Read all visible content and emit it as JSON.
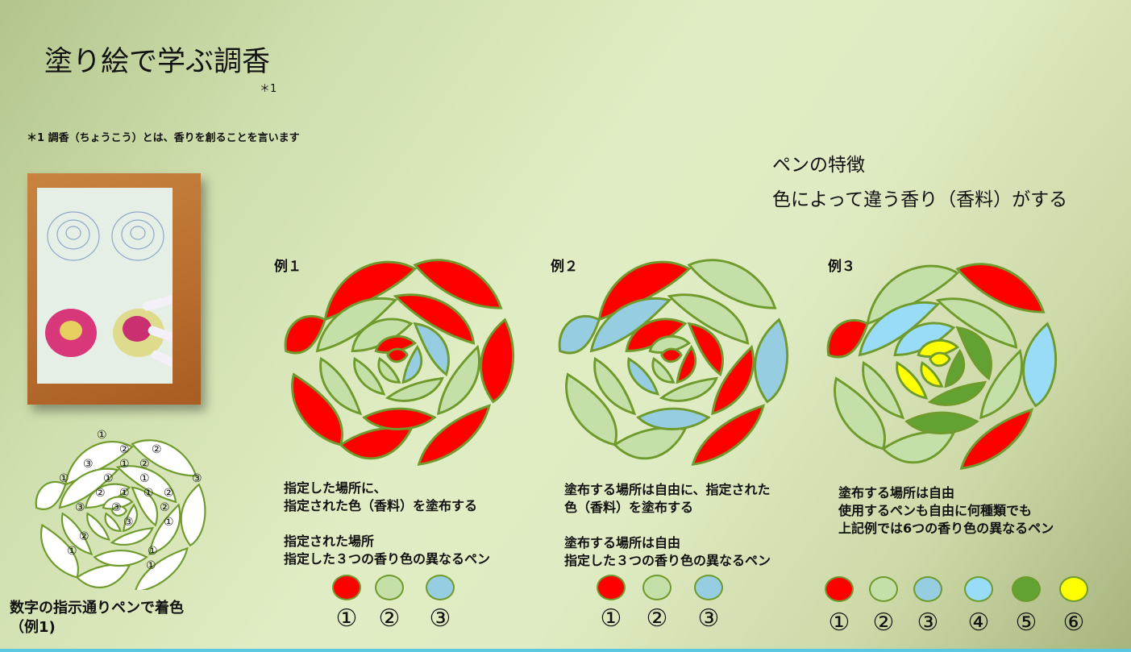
{
  "title": "塗り絵で学ぶ調香",
  "title_note": "＊1",
  "footnote": "＊1 調香（ちょうこう）とは、香りを創ることを言います",
  "features": {
    "heading": "ペンの特徴",
    "text": "色によって違う香り（香料）がする"
  },
  "caption": "数字の指示通りペンで着色\n（例1)",
  "numbered_rose_labels": [
    "①",
    "②",
    "②",
    "③",
    "①",
    "②",
    "①",
    "①",
    "①",
    "③",
    "②",
    "①",
    "①",
    "②",
    "③",
    "③",
    "②",
    "③",
    "①",
    "②",
    "①",
    "①",
    "①"
  ],
  "examples": [
    {
      "label": "例１",
      "desc": "指定した場所に、\n指定された色（香料）を塗布する\n\n指定された場所\n指定した３つの香り色の異なるペン",
      "pens": [
        {
          "num": "①",
          "color": "#ff0000"
        },
        {
          "num": "②",
          "color": "#c4e0a8"
        },
        {
          "num": "③",
          "color": "#96cde0"
        }
      ]
    },
    {
      "label": "例２",
      "desc": "塗布する場所は自由に、指定された\n色（香料）を塗布する\n\n塗布する場所は自由\n指定した３つの香り色の異なるペン",
      "pens": [
        {
          "num": "①",
          "color": "#ff0000"
        },
        {
          "num": "②",
          "color": "#c4e0a8"
        },
        {
          "num": "③",
          "color": "#96cde0"
        }
      ]
    },
    {
      "label": "例３",
      "desc": "塗布する場所は自由\n使用するペンも自由に何種類でも\n上記例では6つの香り色の異なるペン",
      "pens": [
        {
          "num": "①",
          "color": "#ff0000"
        },
        {
          "num": "②",
          "color": "#c4e0a8"
        },
        {
          "num": "③",
          "color": "#96cde0"
        },
        {
          "num": "④",
          "color": "#98dcf8"
        },
        {
          "num": "⑤",
          "color": "#62a232"
        },
        {
          "num": "⑥",
          "color": "#ffff00"
        }
      ]
    }
  ]
}
